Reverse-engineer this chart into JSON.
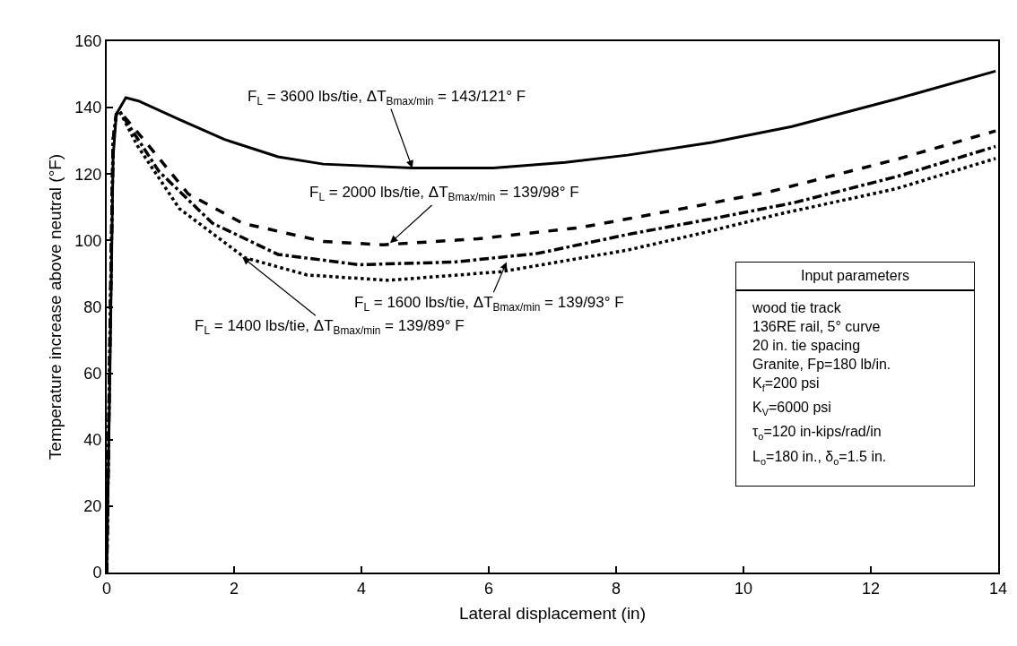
{
  "chart_data": {
    "type": "line",
    "xlabel": "Lateral displacement (in)",
    "ylabel": "Temperature increase above neutral (°F)",
    "xlim": [
      0,
      14
    ],
    "ylim": [
      0,
      160
    ],
    "xticks": [
      0,
      2,
      4,
      6,
      8,
      10,
      12,
      14
    ],
    "yticks": [
      0,
      20,
      40,
      60,
      80,
      100,
      120,
      140,
      160
    ],
    "grid": false,
    "marker": "none",
    "series": [
      {
        "color": "#000000",
        "line_style": "solid",
        "x": [
          0,
          0.05,
          0.1,
          0.15,
          0.3,
          0.5,
          1.14,
          1.85,
          2.69,
          3.4,
          4.8,
          6.07,
          7.2,
          8.18,
          9.5,
          10.76,
          12.4,
          13.96
        ],
        "values": [
          0,
          60,
          125,
          138,
          143,
          142,
          136.4,
          130.4,
          125.2,
          123,
          121.8,
          121.8,
          123.5,
          125.7,
          129.5,
          134.3,
          142.6,
          151
        ]
      },
      {
        "color": "#000000",
        "line_style": "dashed",
        "x": [
          0,
          0.05,
          0.1,
          0.15,
          0.2,
          0.58,
          1.28,
          2.13,
          3.4,
          4.34,
          5.83,
          7.44,
          8.18,
          9.3,
          10.44,
          12.4,
          13.96
        ],
        "values": [
          0,
          70,
          130,
          138,
          139,
          130.4,
          114,
          105.2,
          99.7,
          98.7,
          100.5,
          103.9,
          106.5,
          110.5,
          114.8,
          124.4,
          133
        ]
      },
      {
        "color": "#000000",
        "line_style": "dashdot",
        "x": [
          0,
          0.05,
          0.1,
          0.15,
          0.2,
          0.82,
          1.66,
          2.69,
          3.96,
          5.46,
          6.77,
          8.18,
          9.5,
          10.8,
          12.4,
          13.96
        ],
        "values": [
          0,
          70,
          130,
          138,
          139,
          120.8,
          105.2,
          95.8,
          92.7,
          93.5,
          96.1,
          101.8,
          106.5,
          111.4,
          119.2,
          128.3
        ]
      },
      {
        "color": "#000000",
        "line_style": "dotted",
        "x": [
          0,
          0.05,
          0.1,
          0.15,
          0.2,
          0.48,
          1.14,
          2.17,
          3.15,
          4.42,
          6.2,
          8.18,
          9.3,
          10.53,
          12.4,
          13.96
        ],
        "values": [
          0,
          70,
          130,
          138,
          139,
          128.6,
          109.6,
          94.8,
          89.6,
          88,
          90.6,
          97.1,
          102,
          107.8,
          115.6,
          124.7
        ]
      }
    ],
    "annotations": [
      {
        "text": "F$_{L}$ = 3600 lbs/tie, ΔT$_{Bmax/min}$ = 143/121° F",
        "x": 4.8,
        "y": 121.8
      },
      {
        "text": "F$_{L}$ = 2000 lbs/tie, ΔT$_{Bmax/min}$ = 139/98° F",
        "x": 4.45,
        "y": 99.2
      },
      {
        "text": "F$_{L}$ = 1600 lbs/tie, ΔT$_{Bmax/min}$ = 139/93° F",
        "x": 6.28,
        "y": 93.5
      },
      {
        "text": "F$_{L}$ = 1400 lbs/tie, ΔT$_{Bmax/min}$ = 139/89° F",
        "x": 2.13,
        "y": 95
      },
      "Input parameters",
      "wood tie track",
      "136RE rail, 5° curve",
      "20 in. tie spacing",
      "Granite, Fp=180 lb/in.",
      "K$_{f}$=200 psi",
      "K$_{V}$=6000 psi",
      "τ$_{o}$=120 in-kips/rad/in",
      "L$_{o}$=180 in., δ$_{o}$=1.5 in."
    ]
  }
}
